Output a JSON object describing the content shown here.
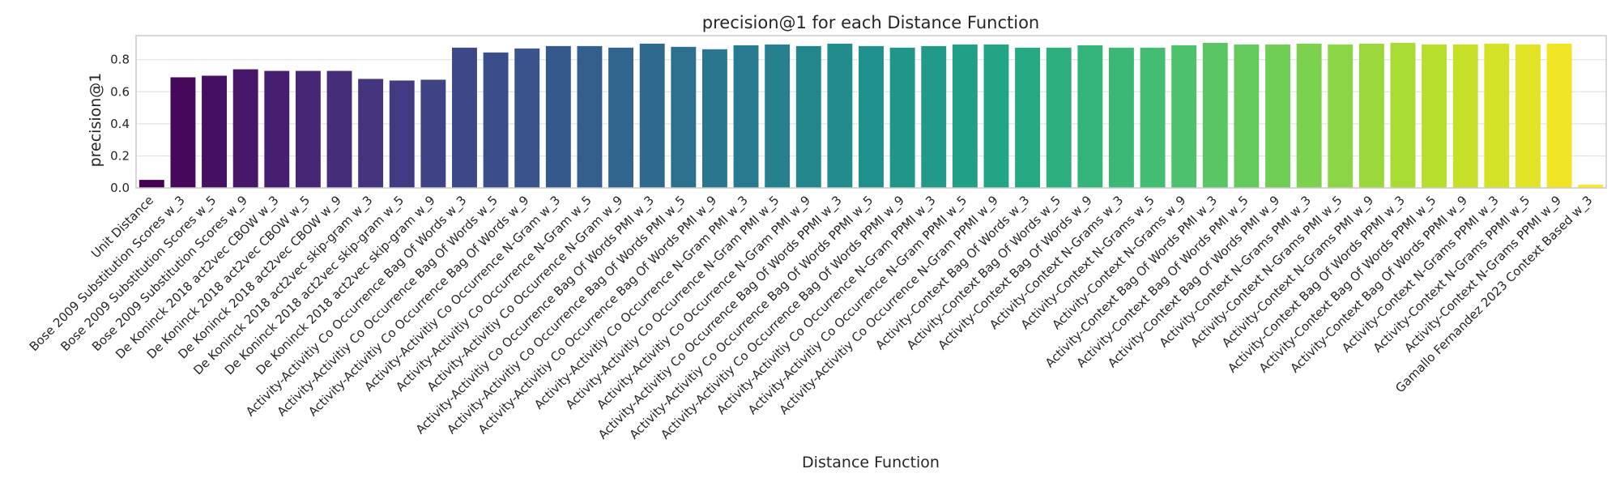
{
  "chart_data": {
    "type": "bar",
    "title": "precision@1 for each Distance Function",
    "xlabel": "Distance Function",
    "ylabel": "precision@1",
    "ylim": [
      0,
      0.95
    ],
    "yticks": [
      "0.0",
      "0.2",
      "0.4",
      "0.6",
      "0.8"
    ],
    "grid": true,
    "palette": "viridis",
    "categories": [
      "Unit Distance",
      "Bose 2009 Substitution Scores w_3",
      "Bose 2009 Substitution Scores w_5",
      "Bose 2009 Substitution Scores w_9",
      "De Koninck 2018 act2vec CBOW w_3",
      "De Koninck 2018 act2vec CBOW w_5",
      "De Koninck 2018 act2vec CBOW w_9",
      "De Koninck 2018 act2vec skip-gram w_3",
      "De Koninck 2018 act2vec skip-gram w_5",
      "De Koninck 2018 act2vec skip-gram w_9",
      "Activity-Activitiy Co Occurrence Bag Of Words w_3",
      "Activity-Activitiy Co Occurrence Bag Of Words w_5",
      "Activity-Activitiy Co Occurrence Bag Of Words w_9",
      "Activity-Activitiy Co Occurrence N-Gram w_3",
      "Activity-Activitiy Co Occurrence N-Gram w_5",
      "Activity-Activitiy Co Occurrence N-Gram w_9",
      "Activity-Activitiy Co Occurrence Bag Of Words PMI w_3",
      "Activity-Activitiy Co Occurrence Bag Of Words PMI w_5",
      "Activity-Activitiy Co Occurrence Bag Of Words PMI w_9",
      "Activity-Activitiy Co Occurrence N-Gram PMI w_3",
      "Activity-Activitiy Co Occurrence N-Gram PMI w_5",
      "Activity-Activitiy Co Occurrence N-Gram PMI w_9",
      "Activity-Activitiy Co Occurrence Bag Of Words PPMI w_3",
      "Activity-Activitiy Co Occurrence Bag Of Words PPMI w_5",
      "Activity-Activitiy Co Occurrence Bag Of Words PPMI w_9",
      "Activity-Activitiy Co Occurrence N-Gram PPMI w_3",
      "Activity-Activitiy Co Occurrence N-Gram PPMI w_5",
      "Activity-Activitiy Co Occurrence N-Gram PPMI w_9",
      "Activity-Context Bag Of Words w_3",
      "Activity-Context Bag Of Words w_5",
      "Activity-Context Bag Of Words w_9",
      "Activity-Context N-Grams w_3",
      "Activity-Context N-Grams w_5",
      "Activity-Context N-Grams w_9",
      "Activity-Context Bag Of Words PMI w_3",
      "Activity-Context Bag Of Words PMI w_5",
      "Activity-Context Bag Of Words PMI w_9",
      "Activity-Context N-Grams PMI w_3",
      "Activity-Context N-Grams PMI w_5",
      "Activity-Context N-Grams PMI w_9",
      "Activity-Context Bag Of Words PPMI w_3",
      "Activity-Context Bag Of Words PPMI w_5",
      "Activity-Context Bag Of Words PPMI w_9",
      "Activity-Context N-Grams PPMI w_3",
      "Activity-Context N-Grams PPMI w_5",
      "Activity-Context N-Grams PPMI w_9",
      "Gamallo Fernandez 2023 Context Based w_3"
    ],
    "values": [
      0.05,
      0.69,
      0.7,
      0.74,
      0.73,
      0.73,
      0.73,
      0.68,
      0.67,
      0.675,
      0.875,
      0.845,
      0.87,
      0.885,
      0.885,
      0.875,
      0.9,
      0.88,
      0.865,
      0.89,
      0.895,
      0.885,
      0.9,
      0.885,
      0.875,
      0.885,
      0.895,
      0.895,
      0.875,
      0.875,
      0.89,
      0.875,
      0.875,
      0.89,
      0.905,
      0.895,
      0.895,
      0.9,
      0.895,
      0.9,
      0.905,
      0.895,
      0.895,
      0.9,
      0.895,
      0.9,
      0.02
    ]
  }
}
